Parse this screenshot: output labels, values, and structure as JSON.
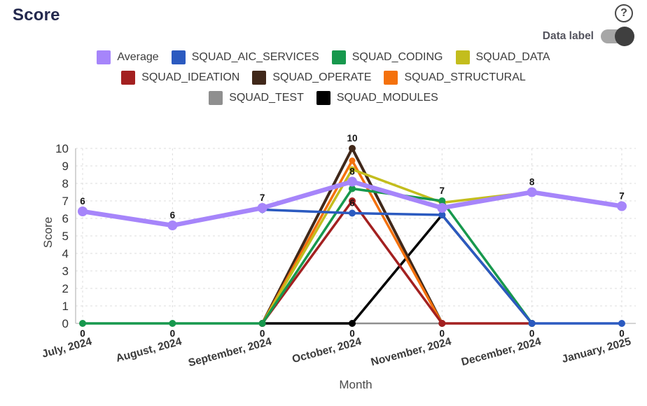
{
  "header": {
    "title": "Score"
  },
  "controls": {
    "help_icon": "?",
    "data_label": {
      "label": "Data label",
      "state": "on"
    }
  },
  "colors": {
    "accent_average": "#a685fa",
    "title_text": "#23284d",
    "grid": "#dcdcdc",
    "axis": "#c6c6c6",
    "tick_text": "#333333",
    "point_label_text": "#141414"
  },
  "chart_data": {
    "type": "line",
    "title": "Score",
    "xlabel": "Month",
    "ylabel": "Score",
    "ylim": [
      0,
      10
    ],
    "y_tick_step": 1,
    "grid": true,
    "grid_style": "dashed",
    "legend_position": "top-center",
    "legend_rows": [
      4,
      3,
      2
    ],
    "categories": [
      "July, 2024",
      "August, 2024",
      "September, 2024",
      "October, 2024",
      "November, 2024",
      "December, 2024",
      "January, 2025"
    ],
    "series": [
      {
        "name": "Average",
        "color": "#a685fa",
        "line_width": 6.5,
        "point_radius": 7,
        "z": 8,
        "values": [
          6.4,
          5.6,
          6.6,
          8.1,
          6.6,
          7.5,
          6.7
        ],
        "point_labels": [
          "6",
          "6",
          "7",
          "8",
          null,
          "8",
          "7"
        ]
      },
      {
        "name": "SQUAD_AIC_SERVICES",
        "color": "#2b5ac0",
        "line_width": 3.5,
        "point_radius": 5,
        "z": 7,
        "values": [
          null,
          null,
          6.5,
          6.3,
          6.2,
          0,
          0
        ],
        "point_labels": [
          null,
          null,
          null,
          "6",
          null,
          "0",
          "0"
        ]
      },
      {
        "name": "SQUAD_CODING",
        "color": "#17984d",
        "line_width": 3.5,
        "point_radius": 5,
        "z": 6,
        "values": [
          0,
          0,
          0,
          7.7,
          7.0,
          0,
          null
        ],
        "point_labels": [
          "0",
          "0",
          "0",
          null,
          "7",
          null,
          null
        ]
      },
      {
        "name": "SQUAD_DATA",
        "color": "#c3bd1d",
        "line_width": 3.5,
        "point_radius": 4.5,
        "z": 5,
        "values": [
          null,
          null,
          0,
          8.8,
          6.9,
          7.5,
          null
        ],
        "point_labels": [
          null,
          null,
          null,
          null,
          null,
          null,
          null
        ]
      },
      {
        "name": "SQUAD_IDEATION",
        "color": "#a32020",
        "line_width": 3.5,
        "point_radius": 5,
        "z": 4,
        "values": [
          null,
          null,
          0,
          7.0,
          0,
          0,
          null
        ],
        "point_labels": [
          null,
          null,
          null,
          null,
          "0",
          null,
          null
        ]
      },
      {
        "name": "SQUAD_OPERATE",
        "color": "#40281a",
        "line_width": 4,
        "point_radius": 5,
        "z": 2,
        "values": [
          null,
          null,
          0,
          10,
          0,
          null,
          null
        ],
        "point_labels": [
          null,
          null,
          null,
          "10",
          null,
          null,
          null
        ]
      },
      {
        "name": "SQUAD_STRUCTURAL",
        "color": "#f4710d",
        "line_width": 3.5,
        "point_radius": 4.5,
        "z": 3,
        "values": [
          null,
          null,
          0,
          9.3,
          0,
          null,
          null
        ],
        "point_labels": [
          null,
          null,
          null,
          null,
          null,
          null,
          null
        ]
      },
      {
        "name": "SQUAD_TEST",
        "color": "#8f8f8f",
        "line_width": 2.5,
        "point_radius": 3,
        "z": 0,
        "values": [
          null,
          null,
          null,
          0,
          0,
          null,
          null
        ],
        "point_labels": [
          null,
          null,
          null,
          null,
          null,
          null,
          null
        ]
      },
      {
        "name": "SQUAD_MODULES",
        "color": "#000000",
        "line_width": 3.5,
        "point_radius": 5,
        "z": 1,
        "values": [
          null,
          null,
          0,
          0,
          6.2,
          0,
          null
        ],
        "point_labels": [
          null,
          null,
          null,
          "0",
          null,
          null,
          null
        ]
      }
    ]
  }
}
